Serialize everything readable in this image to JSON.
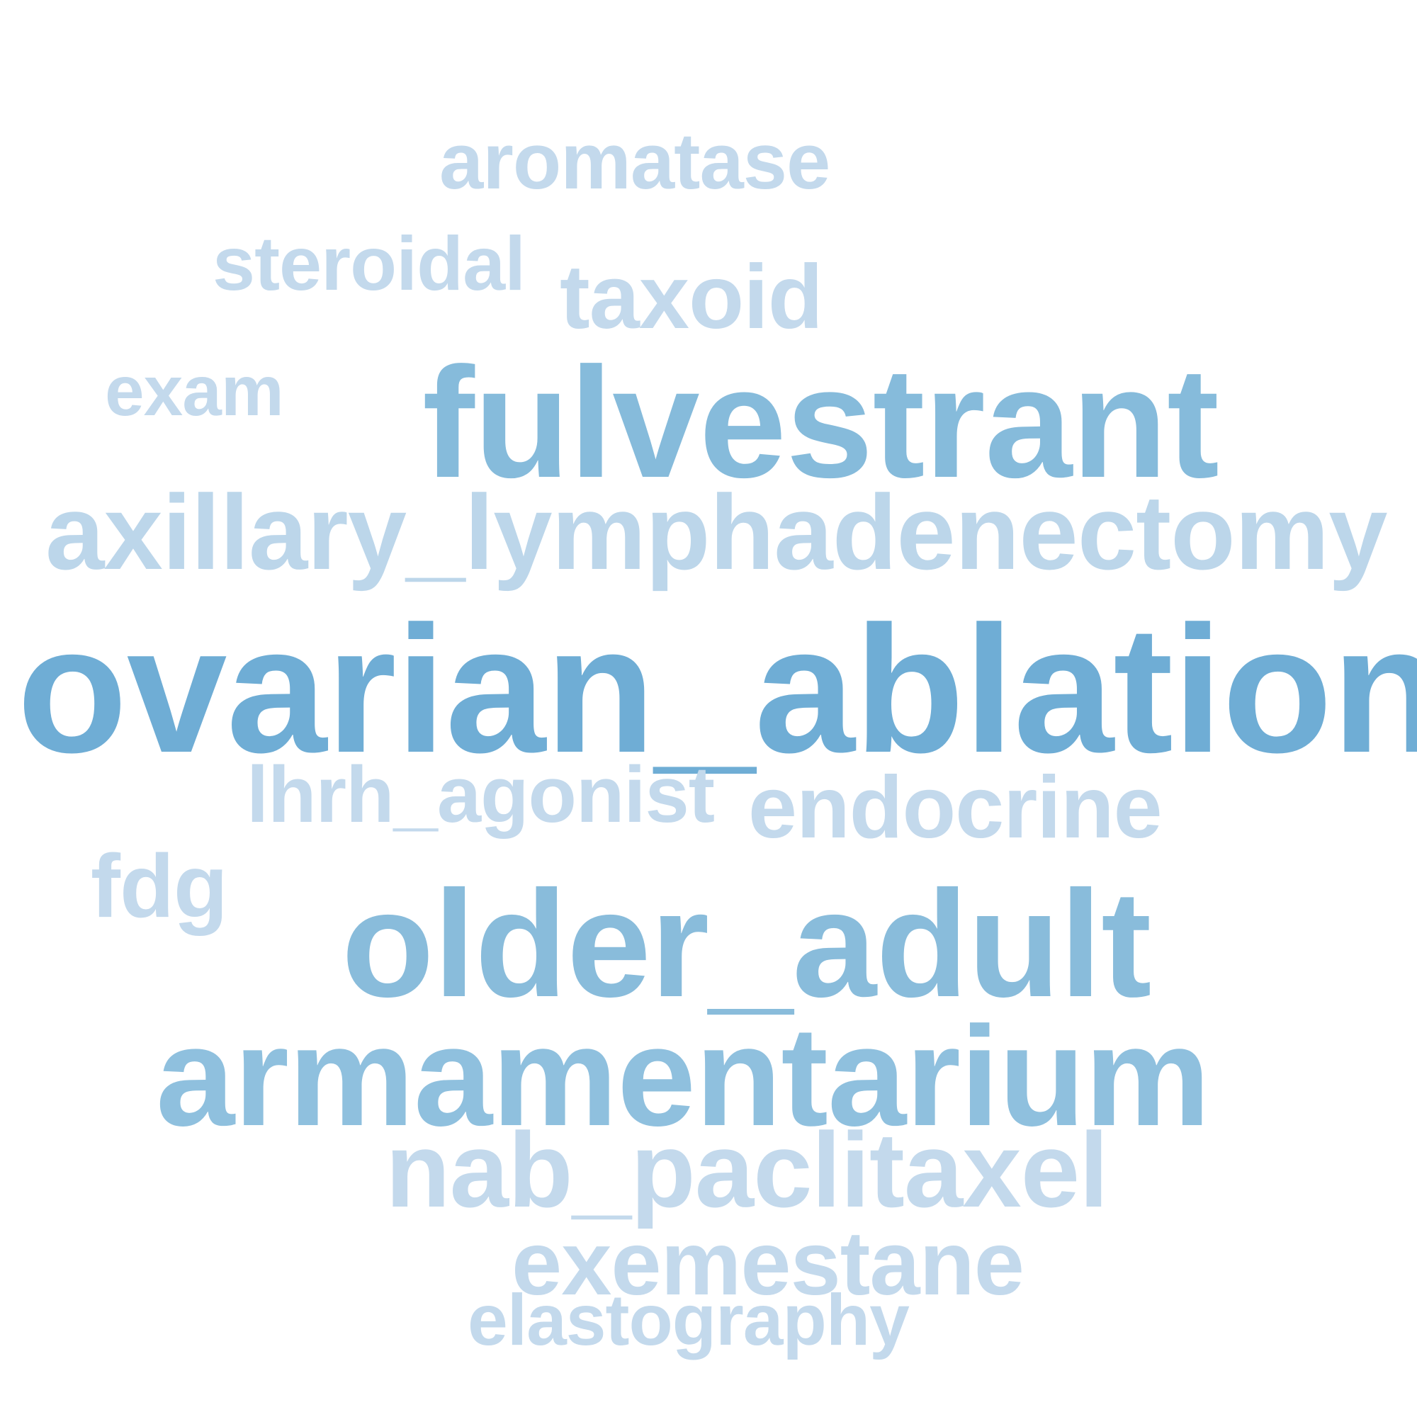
{
  "words": [
    {
      "key": "aromatase",
      "text": "aromatase",
      "color": "#c3d9ec"
    },
    {
      "key": "steroidal",
      "text": "steroidal",
      "color": "#c3d9ec"
    },
    {
      "key": "taxoid",
      "text": "taxoid",
      "color": "#c3d9ec"
    },
    {
      "key": "exam",
      "text": "exam",
      "color": "#c3d9ec"
    },
    {
      "key": "fulvestrant",
      "text": "fulvestrant",
      "color": "#86bbdb"
    },
    {
      "key": "axillary_lymphadenectomy",
      "text": "axillary_lymphadenectomy",
      "color": "#bcd6ea"
    },
    {
      "key": "ovarian_ablation",
      "text": "ovarian_ablation",
      "color": "#6fadd5"
    },
    {
      "key": "lhrh_agonist",
      "text": "lhrh_agonist",
      "color": "#c3d9ec"
    },
    {
      "key": "endocrine",
      "text": "endocrine",
      "color": "#c3d9ec"
    },
    {
      "key": "fdg",
      "text": "fdg",
      "color": "#c3d9ec"
    },
    {
      "key": "older_adult",
      "text": "older_adult",
      "color": "#89bcdb"
    },
    {
      "key": "armamentarium",
      "text": "armamentarium",
      "color": "#8fc0de"
    },
    {
      "key": "nab_paclitaxel",
      "text": "nab_paclitaxel",
      "color": "#c3d9ec"
    },
    {
      "key": "exemestane",
      "text": "exemestane",
      "color": "#c3d9ec"
    },
    {
      "key": "elastography",
      "text": "elastography",
      "color": "#c3d9ec"
    }
  ]
}
